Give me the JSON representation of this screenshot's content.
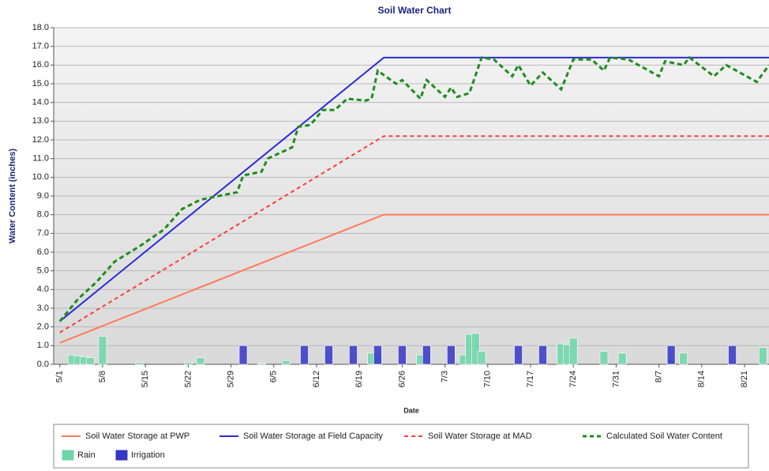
{
  "chart_data": {
    "type": "line",
    "title": "Soil Water Chart",
    "y_label": "Water Content (inches)",
    "x_label": "Date",
    "xlim": [
      "4/30",
      "8/25"
    ],
    "ylim": [
      0,
      18
    ],
    "xticks": [
      "5/1",
      "5/8",
      "5/15",
      "5/22",
      "5/29",
      "6/5",
      "6/12",
      "6/19",
      "6/26",
      "7/3",
      "7/10",
      "7/17",
      "7/24",
      "7/31",
      "8/7",
      "8/14",
      "8/21"
    ],
    "yticks": [
      {
        "value": 0,
        "label": "0.0"
      },
      {
        "value": 1,
        "label": "1.0"
      },
      {
        "value": 2,
        "label": "2.0"
      },
      {
        "value": 3,
        "label": "3.0"
      },
      {
        "value": 4,
        "label": "4.0"
      },
      {
        "value": 5,
        "label": "5.0"
      },
      {
        "value": 6,
        "label": "6.0"
      },
      {
        "value": 7,
        "label": "7.0"
      },
      {
        "value": 8,
        "label": "8.0"
      },
      {
        "value": 9,
        "label": "9.0"
      },
      {
        "value": 10,
        "label": "10.0"
      },
      {
        "value": 11,
        "label": "11.0"
      },
      {
        "value": 12,
        "label": "12.0"
      },
      {
        "value": 13,
        "label": "13.0"
      },
      {
        "value": 14,
        "label": "14.0"
      },
      {
        "value": 15,
        "label": "15.0"
      },
      {
        "value": 16,
        "label": "16.0"
      },
      {
        "value": 17,
        "label": "17.0"
      },
      {
        "value": 18,
        "label": "18.0"
      }
    ],
    "grid": true,
    "legend": "bottom",
    "series": [
      {
        "name": "Soil Water Storage at PWP",
        "type": "line",
        "dash": "solid",
        "color": "#ff7a5c",
        "x": [
          "5/1",
          "6/23",
          "8/25"
        ],
        "values": [
          1.15,
          8.0,
          8.0
        ]
      },
      {
        "name": "Soil Water Storage at Field Capacity",
        "type": "line",
        "dash": "solid",
        "color": "#2b2bd6",
        "x": [
          "5/1",
          "6/23",
          "8/25"
        ],
        "values": [
          2.3,
          16.4,
          16.4
        ]
      },
      {
        "name": "Soil Water Storage at MAD",
        "type": "line",
        "dash": "dashed",
        "color": "#ff3b3b",
        "x": [
          "5/1",
          "6/23",
          "8/25"
        ],
        "values": [
          1.7,
          12.2,
          12.2
        ]
      },
      {
        "name": "Calculated Soil Water Content",
        "type": "line",
        "dash": "dashed",
        "color": "#1e8c1e",
        "x": [
          "5/1",
          "5/4",
          "5/7",
          "5/10",
          "5/14",
          "5/18",
          "5/21",
          "5/24",
          "5/30",
          "5/31",
          "6/3",
          "6/4",
          "6/8",
          "6/9",
          "6/11",
          "6/13",
          "6/15",
          "6/17",
          "6/20",
          "6/21",
          "6/22",
          "6/25",
          "6/26",
          "6/29",
          "6/30",
          "7/3",
          "7/4",
          "7/5",
          "7/7",
          "7/9",
          "7/11",
          "7/14",
          "7/15",
          "7/17",
          "7/19",
          "7/22",
          "7/24",
          "7/27",
          "7/29",
          "7/30",
          "8/2",
          "8/7",
          "8/8",
          "8/11",
          "8/12",
          "8/16",
          "8/18",
          "8/23",
          "8/25"
        ],
        "values": [
          2.3,
          3.5,
          4.4,
          5.5,
          6.3,
          7.2,
          8.3,
          8.8,
          9.2,
          10.1,
          10.3,
          11.0,
          11.6,
          12.7,
          12.8,
          13.6,
          13.6,
          14.2,
          14.1,
          14.2,
          15.7,
          15.0,
          15.2,
          14.2,
          15.2,
          14.3,
          14.8,
          14.3,
          14.5,
          16.4,
          16.3,
          15.4,
          16.0,
          14.9,
          15.6,
          14.7,
          16.3,
          16.3,
          15.7,
          16.4,
          16.3,
          15.4,
          16.2,
          16.0,
          16.4,
          15.4,
          16.0,
          15.1,
          16.0
        ]
      },
      {
        "name": "Rain",
        "type": "bar",
        "color": "#6fd6a8",
        "x": [
          "5/3",
          "5/4",
          "5/5",
          "5/6",
          "5/8",
          "5/14",
          "5/22",
          "5/24",
          "6/3",
          "6/7",
          "6/21",
          "6/22",
          "6/29",
          "7/6",
          "7/7",
          "7/8",
          "7/9",
          "7/22",
          "7/23",
          "7/24",
          "7/29",
          "8/1",
          "8/9",
          "8/11",
          "8/24"
        ],
        "values": [
          0.5,
          0.45,
          0.4,
          0.35,
          1.5,
          0.1,
          0.1,
          0.35,
          0.05,
          0.2,
          0.6,
          0.6,
          0.5,
          0.5,
          1.6,
          1.65,
          0.7,
          1.1,
          1.05,
          1.4,
          0.7,
          0.6,
          0.25,
          0.6,
          0.9
        ]
      },
      {
        "name": "Irrigation",
        "type": "bar",
        "color": "#3535c8",
        "x": [
          "5/31",
          "6/10",
          "6/14",
          "6/18",
          "6/22",
          "6/26",
          "6/30",
          "7/4",
          "7/15",
          "7/19",
          "8/9",
          "8/19"
        ],
        "values": [
          1.0,
          1.0,
          1.0,
          1.0,
          1.0,
          1.0,
          1.0,
          1.0,
          1.0,
          1.0,
          1.0,
          1.0
        ]
      }
    ]
  }
}
